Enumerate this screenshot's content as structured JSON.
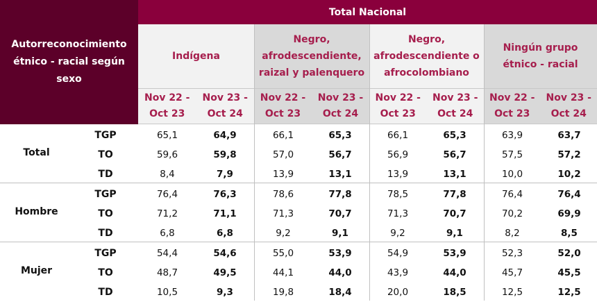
{
  "header": {
    "corner_line1": "Autorreconocimiento",
    "corner_line2": "étnico - racial según sexo",
    "banner": "Total Nacional",
    "groups": [
      {
        "lines": [
          "Indígena"
        ]
      },
      {
        "lines": [
          "Negro,",
          "afrodescendiente,",
          "raizal y palenquero"
        ]
      },
      {
        "lines": [
          "Negro,",
          "afrodescendiente o",
          "afrocolombiano"
        ]
      },
      {
        "lines": [
          "Ningún grupo",
          "étnico - racial"
        ]
      }
    ],
    "periods": [
      {
        "line1": "Nov 22 -",
        "line2": "Oct 23"
      },
      {
        "line1": "Nov 23 -",
        "line2": "Oct 24"
      }
    ]
  },
  "colors": {
    "corner_bg": "#5c0029",
    "banner_bg": "#8a003c",
    "header_text": "#a61e4d",
    "light_bg": "#f2f2f2",
    "dark_bg": "#d9d9d9"
  },
  "sections": [
    {
      "label": "Total",
      "rows": [
        {
          "indicator": "TGP",
          "values": [
            "65,1",
            "64,9",
            "66,1",
            "65,3",
            "66,1",
            "65,3",
            "63,9",
            "63,7"
          ]
        },
        {
          "indicator": "TO",
          "values": [
            "59,6",
            "59,8",
            "57,0",
            "56,7",
            "56,9",
            "56,7",
            "57,5",
            "57,2"
          ]
        },
        {
          "indicator": "TD",
          "values": [
            "8,4",
            "7,9",
            "13,9",
            "13,1",
            "13,9",
            "13,1",
            "10,0",
            "10,2"
          ]
        }
      ]
    },
    {
      "label": "Hombre",
      "rows": [
        {
          "indicator": "TGP",
          "values": [
            "76,4",
            "76,3",
            "78,6",
            "77,8",
            "78,5",
            "77,8",
            "76,4",
            "76,4"
          ]
        },
        {
          "indicator": "TO",
          "values": [
            "71,2",
            "71,1",
            "71,3",
            "70,7",
            "71,3",
            "70,7",
            "70,2",
            "69,9"
          ]
        },
        {
          "indicator": "TD",
          "values": [
            "6,8",
            "6,8",
            "9,2",
            "9,1",
            "9,2",
            "9,1",
            "8,2",
            "8,5"
          ]
        }
      ]
    },
    {
      "label": "Mujer",
      "rows": [
        {
          "indicator": "TGP",
          "values": [
            "54,4",
            "54,6",
            "55,0",
            "53,9",
            "54,9",
            "53,9",
            "52,3",
            "52,0"
          ]
        },
        {
          "indicator": "TO",
          "values": [
            "48,7",
            "49,5",
            "44,1",
            "44,0",
            "43,9",
            "44,0",
            "45,7",
            "45,5"
          ]
        },
        {
          "indicator": "TD",
          "values": [
            "10,5",
            "9,3",
            "19,8",
            "18,4",
            "20,0",
            "18,5",
            "12,5",
            "12,5"
          ]
        }
      ]
    }
  ]
}
